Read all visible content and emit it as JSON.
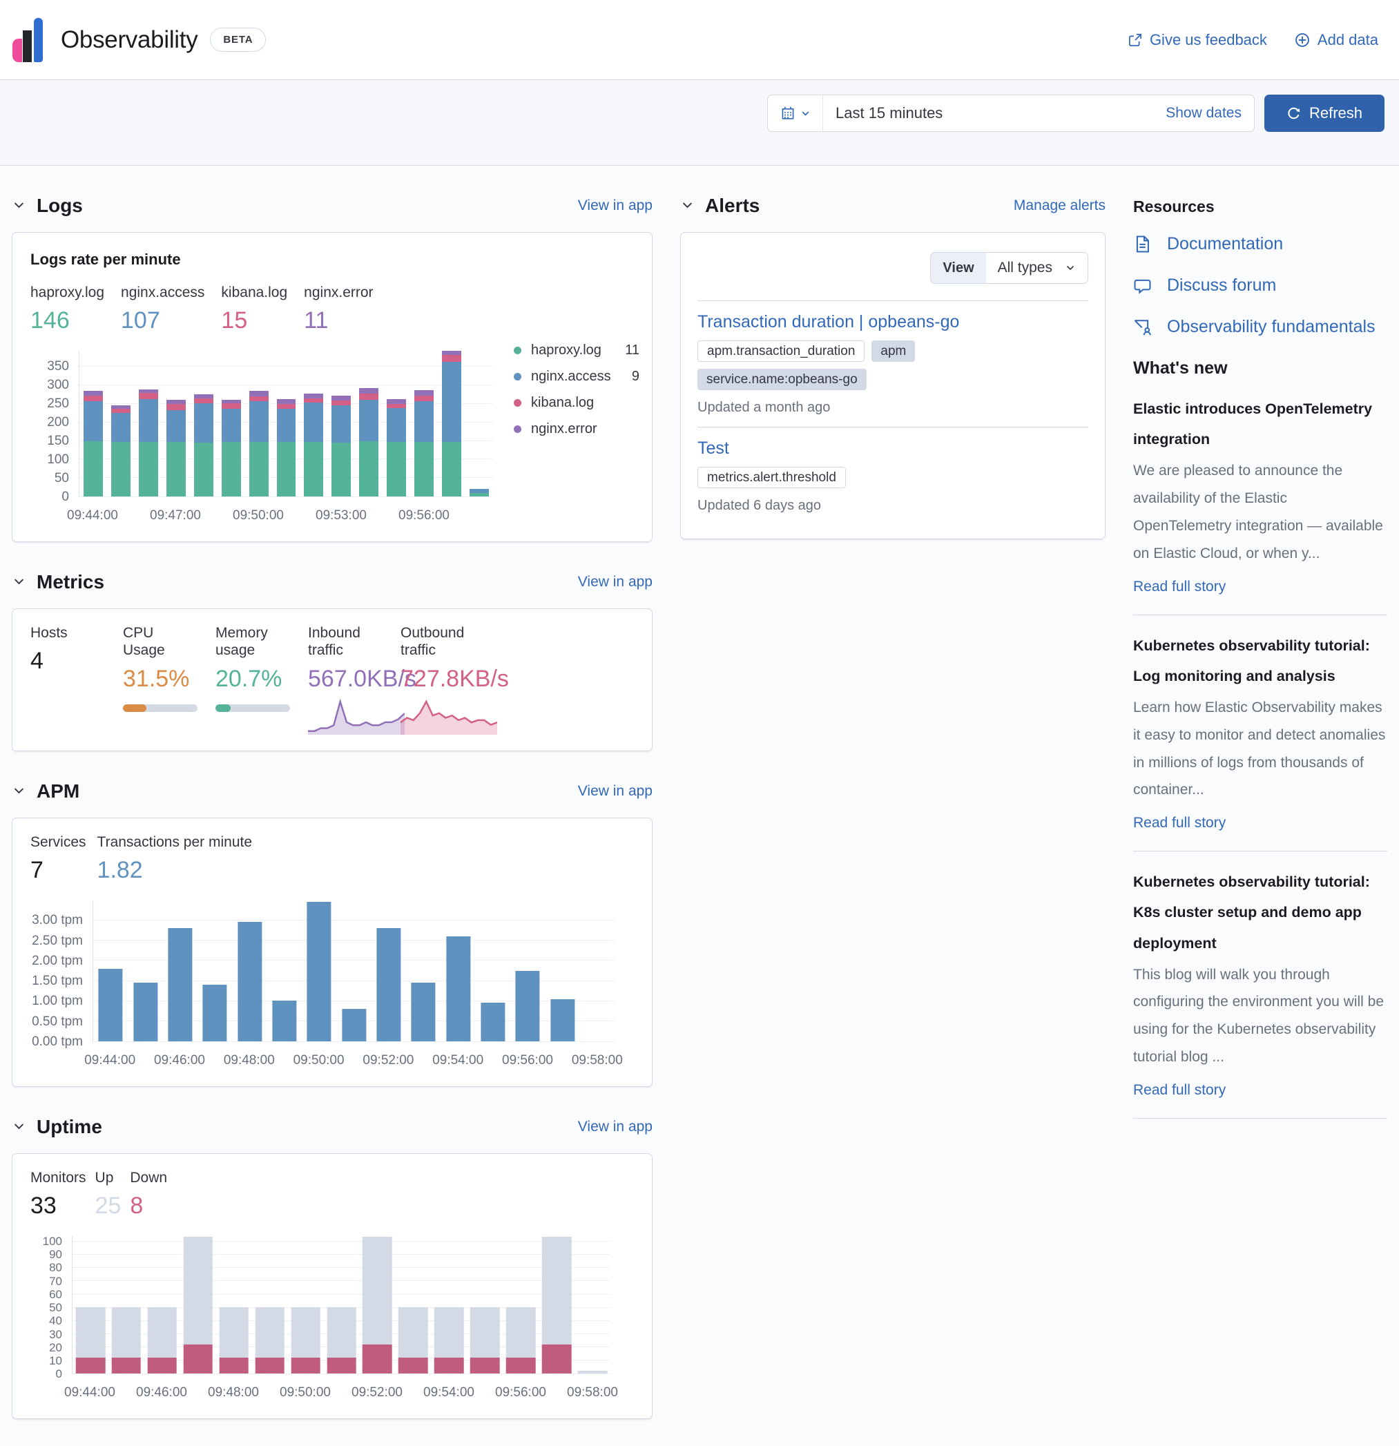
{
  "colors": {
    "link": "#3268b8",
    "primary_button": "#2f62ab",
    "text": "#343741",
    "muted": "#69707d",
    "border": "#d3dae6"
  },
  "header": {
    "title": "Observability",
    "beta": "BETA",
    "feedback": "Give us feedback",
    "add_data": "Add data"
  },
  "toolbar": {
    "time_range": "Last 15 minutes",
    "show_dates": "Show dates",
    "refresh": "Refresh"
  },
  "sections": {
    "logs": {
      "title": "Logs",
      "action": "View in app",
      "panel_title": "Logs rate per minute",
      "stats": [
        {
          "label": "haproxy.log",
          "value": "146",
          "color": "#54B399"
        },
        {
          "label": "nginx.access",
          "value": "107",
          "color": "#6092C0"
        },
        {
          "label": "kibana.log",
          "value": "15",
          "color": "#D36086"
        },
        {
          "label": "nginx.error",
          "value": "11",
          "color": "#9170B8"
        }
      ],
      "legend": [
        {
          "label": "haproxy.log",
          "value": "11",
          "color": "#54B399"
        },
        {
          "label": "nginx.access",
          "value": "9",
          "color": "#6092C0"
        },
        {
          "label": "kibana.log",
          "value": "",
          "color": "#D36086"
        },
        {
          "label": "nginx.error",
          "value": "",
          "color": "#9170B8"
        }
      ]
    },
    "metrics": {
      "title": "Metrics",
      "action": "View in app",
      "stats": [
        {
          "label": "Hosts",
          "value": "4",
          "color": "#1a1c21"
        },
        {
          "label": "CPU Usage",
          "value": "31.5%",
          "color": "#DA8B45",
          "progress": 31.5
        },
        {
          "label": "Memory usage",
          "value": "20.7%",
          "color": "#54B399",
          "progress": 20.7
        },
        {
          "label": "Inbound traffic",
          "value": "567.0KB/s",
          "color": "#9170B8",
          "spark": "inbound-traffic"
        },
        {
          "label": "Outbound traffic",
          "value": "727.8KB/s",
          "color": "#D36086",
          "spark": "outbound-traffic"
        }
      ]
    },
    "apm": {
      "title": "APM",
      "action": "View in app",
      "stats": [
        {
          "label": "Services",
          "value": "7",
          "color": "#1a1c21"
        },
        {
          "label": "Transactions per minute",
          "value": "1.82",
          "color": "#6092C0"
        }
      ]
    },
    "uptime": {
      "title": "Uptime",
      "action": "View in app",
      "stats": [
        {
          "label": "Monitors",
          "value": "33",
          "color": "#1a1c21"
        },
        {
          "label": "Up",
          "value": "25",
          "color": "#D3DAE6"
        },
        {
          "label": "Down",
          "value": "8",
          "color": "#D36086"
        }
      ]
    },
    "alerts": {
      "title": "Alerts",
      "action": "Manage alerts",
      "view_label": "View",
      "type_filter": "All types",
      "items": [
        {
          "title": "Transaction duration | opbeans-go",
          "badges": [
            {
              "text": "apm.transaction_duration",
              "style": "hollow"
            },
            {
              "text": "apm",
              "style": "default"
            },
            {
              "text": "service.name:opbeans-go",
              "style": "default"
            }
          ],
          "updated": "Updated a month ago"
        },
        {
          "title": "Test",
          "badges": [
            {
              "text": "metrics.alert.threshold",
              "style": "hollow"
            }
          ],
          "updated": "Updated 6 days ago"
        }
      ]
    }
  },
  "resources": {
    "title": "Resources",
    "links": [
      {
        "label": "Documentation",
        "icon": "document-icon"
      },
      {
        "label": "Discuss forum",
        "icon": "discuss-icon"
      },
      {
        "label": "Observability fundamentals",
        "icon": "training-icon"
      }
    ]
  },
  "whats_new": {
    "title": "What's new",
    "articles": [
      {
        "title": "Elastic introduces OpenTelemetry integration",
        "excerpt": "We are pleased to announce the availability of the Elastic OpenTelemetry integration — available on Elastic Cloud, or when y...",
        "link": "Read full story"
      },
      {
        "title": "Kubernetes observability tutorial: Log monitoring and analysis",
        "excerpt": "Learn how Elastic Observability makes it easy to monitor and detect anomalies in millions of logs from thousands of container...",
        "link": "Read full story"
      },
      {
        "title": "Kubernetes observability tutorial: K8s cluster setup and demo app deployment",
        "excerpt": "This blog will walk you through configuring the environment you will be using for the Kubernetes observability tutorial blog ...",
        "link": "Read full story"
      }
    ]
  },
  "chart_data": [
    {
      "id": "logs-rate",
      "type": "bar",
      "stacked": true,
      "title": "Logs rate per minute",
      "x": [
        "09:44",
        "09:45",
        "09:46",
        "09:47",
        "09:48",
        "09:49",
        "09:50",
        "09:51",
        "09:52",
        "09:53",
        "09:54",
        "09:55",
        "09:56",
        "09:57",
        "09:58"
      ],
      "series": [
        {
          "name": "haproxy.log",
          "color": "#54B399",
          "values": [
            148,
            147,
            147,
            147,
            145,
            147,
            147,
            147,
            147,
            145,
            148,
            147,
            147,
            147,
            10
          ]
        },
        {
          "name": "nginx.access",
          "color": "#6092C0",
          "values": [
            107,
            78,
            115,
            84,
            105,
            88,
            108,
            88,
            105,
            100,
            112,
            91,
            108,
            215,
            10
          ]
        },
        {
          "name": "kibana.log",
          "color": "#D36086",
          "values": [
            16,
            10,
            16,
            17,
            14,
            16,
            13,
            13,
            12,
            13,
            17,
            11,
            16,
            18,
            0
          ]
        },
        {
          "name": "nginx.error",
          "color": "#9170B8",
          "values": [
            12,
            10,
            10,
            11,
            10,
            9,
            15,
            13,
            12,
            13,
            14,
            12,
            15,
            10,
            0
          ]
        }
      ],
      "ymax": 392,
      "grid": true,
      "legend_position": "right",
      "yticks": [
        [
          0,
          "0"
        ],
        [
          50,
          "50"
        ],
        [
          100,
          "100"
        ],
        [
          150,
          "150"
        ],
        [
          200,
          "200"
        ],
        [
          250,
          "250"
        ],
        [
          300,
          "300"
        ],
        [
          350,
          "350"
        ]
      ],
      "xticks": [
        [
          0,
          "09:44:00"
        ],
        [
          3,
          "09:47:00"
        ],
        [
          6,
          "09:50:00"
        ],
        [
          9,
          "09:53:00"
        ],
        [
          12,
          "09:56:00"
        ]
      ]
    },
    {
      "id": "apm-transactions",
      "type": "bar",
      "stacked": false,
      "title": "Transactions per minute",
      "color": "#6092C0",
      "x": [
        "09:44",
        "09:45",
        "09:46",
        "09:47",
        "09:48",
        "09:49",
        "09:50",
        "09:51",
        "09:52",
        "09:53",
        "09:54",
        "09:55",
        "09:56",
        "09:57"
      ],
      "values": [
        1.8,
        1.45,
        2.8,
        1.4,
        2.95,
        1.0,
        3.45,
        0.8,
        2.8,
        1.45,
        2.6,
        0.95,
        1.75,
        1.05
      ],
      "ymax": 3.5,
      "grid": true,
      "yticks": [
        [
          0,
          "0.00 tpm"
        ],
        [
          0.5,
          "0.50 tpm"
        ],
        [
          1,
          "1.00 tpm"
        ],
        [
          1.5,
          "1.50 tpm"
        ],
        [
          2,
          "2.00 tpm"
        ],
        [
          2.5,
          "2.50 tpm"
        ],
        [
          3,
          "3.00 tpm"
        ]
      ],
      "xticks": [
        [
          0,
          "09:44:00"
        ],
        [
          2,
          "09:46:00"
        ],
        [
          4,
          "09:48:00"
        ],
        [
          6,
          "09:50:00"
        ],
        [
          8,
          "09:52:00"
        ],
        [
          10,
          "09:54:00"
        ],
        [
          12,
          "09:56:00"
        ],
        [
          14,
          "09:58:00"
        ]
      ]
    },
    {
      "id": "uptime-pings",
      "type": "bar",
      "stacked": true,
      "title": "Pings over time",
      "x": [
        "09:44",
        "09:45",
        "09:46",
        "09:47",
        "09:48",
        "09:49",
        "09:50",
        "09:51",
        "09:52",
        "09:53",
        "09:54",
        "09:55",
        "09:56",
        "09:57",
        "09:58"
      ],
      "series": [
        {
          "name": "Down",
          "color": "#C05C80",
          "values": [
            12,
            12,
            12,
            22,
            12,
            12,
            12,
            12,
            22,
            12,
            12,
            12,
            12,
            22,
            0
          ]
        },
        {
          "name": "Up",
          "color": "#D3DAE6",
          "values": [
            38,
            38,
            38,
            81,
            38,
            38,
            38,
            38,
            81,
            38,
            38,
            38,
            38,
            81,
            2
          ]
        }
      ],
      "ymax": 104,
      "grid": true,
      "yticks": [
        [
          0,
          "0"
        ],
        [
          10,
          "10"
        ],
        [
          20,
          "20"
        ],
        [
          30,
          "30"
        ],
        [
          40,
          "40"
        ],
        [
          50,
          "50"
        ],
        [
          60,
          "60"
        ],
        [
          70,
          "70"
        ],
        [
          80,
          "80"
        ],
        [
          90,
          "90"
        ],
        [
          100,
          "100"
        ]
      ],
      "xticks": [
        [
          0,
          "09:44:00"
        ],
        [
          2,
          "09:46:00"
        ],
        [
          4,
          "09:48:00"
        ],
        [
          6,
          "09:50:00"
        ],
        [
          8,
          "09:52:00"
        ],
        [
          10,
          "09:54:00"
        ],
        [
          12,
          "09:56:00"
        ],
        [
          14,
          "09:58:00"
        ]
      ]
    },
    {
      "id": "inbound-traffic",
      "type": "area",
      "title": "Inbound traffic sparkline",
      "color": "#9170B8",
      "values": [
        1,
        1,
        2,
        2,
        3,
        11,
        4,
        3,
        3,
        4,
        3,
        3,
        4,
        4,
        5,
        7
      ]
    },
    {
      "id": "outbound-traffic",
      "type": "area",
      "title": "Outbound traffic sparkline",
      "color": "#D36086",
      "values": [
        5,
        7,
        6,
        9,
        14,
        8,
        9,
        7,
        8,
        6,
        7,
        5,
        6,
        6,
        4,
        5
      ]
    }
  ]
}
